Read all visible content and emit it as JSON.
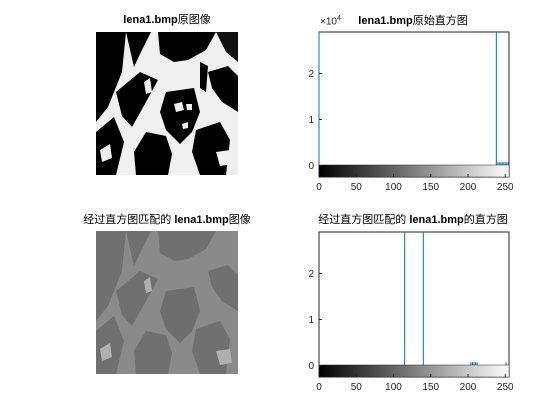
{
  "figure": {
    "titles": {
      "orig_image": {
        "file": "lena1.bmp",
        "suffix": "原图像"
      },
      "orig_hist": {
        "file": "lena1.bmp",
        "suffix": "原始直方图"
      },
      "matched_image": {
        "prefix": "经过直方图匹配的 ",
        "file": "lena1.bmp",
        "suffix": "图像"
      },
      "matched_hist": {
        "prefix": "经过直方图匹配的 ",
        "file": "lena1.bmp",
        "suffix": "的直方图"
      }
    }
  },
  "chart_data": [
    {
      "type": "bar",
      "panel": "orig_hist",
      "xlim": [
        0,
        255
      ],
      "ylim": [
        -2500,
        29000
      ],
      "xticks": [
        0,
        50,
        100,
        150,
        200,
        250
      ],
      "yticks": [
        0,
        1,
        2
      ],
      "y_exponent_label": "×10",
      "y_exponent": "4",
      "colorbar": "gray",
      "bars": [
        {
          "x": 0,
          "y": 29000
        },
        {
          "x": 238,
          "y": 29000
        },
        {
          "x": 240,
          "y": 700
        },
        {
          "x": 242,
          "y": 700
        },
        {
          "x": 244,
          "y": 700
        },
        {
          "x": 246,
          "y": 700
        },
        {
          "x": 248,
          "y": 700
        },
        {
          "x": 250,
          "y": 700
        },
        {
          "x": 252,
          "y": 700
        },
        {
          "x": 254,
          "y": 700
        }
      ]
    },
    {
      "type": "bar",
      "panel": "matched_hist",
      "xlim": [
        0,
        255
      ],
      "ylim": [
        -2500,
        29000
      ],
      "xticks": [
        0,
        50,
        100,
        150,
        200,
        250
      ],
      "yticks": [
        0,
        1,
        2
      ],
      "colorbar": "gray",
      "bars": [
        {
          "x": 115,
          "y": 29000
        },
        {
          "x": 140,
          "y": 29000
        },
        {
          "x": 204,
          "y": 700
        },
        {
          "x": 206,
          "y": 700
        },
        {
          "x": 208,
          "y": 700
        },
        {
          "x": 210,
          "y": 700
        },
        {
          "x": 212,
          "y": 700
        },
        {
          "x": 251,
          "y": 700
        }
      ]
    }
  ]
}
